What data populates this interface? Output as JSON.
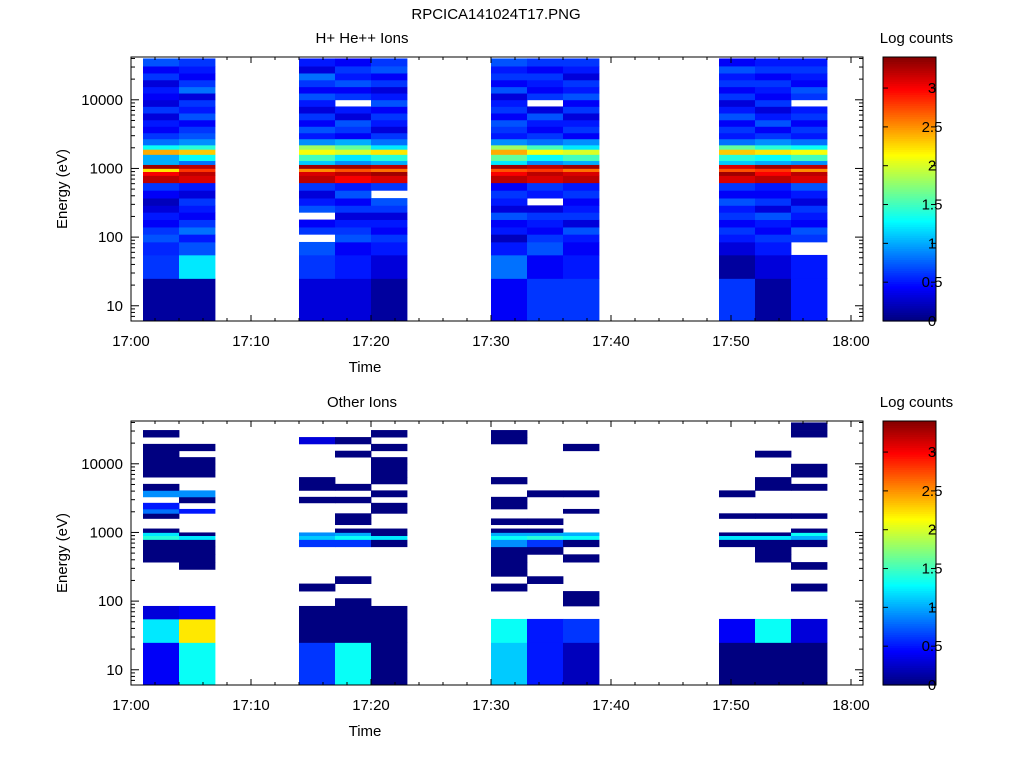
{
  "page_title": "RPCICA141024T17.PNG",
  "colorbar_label": "Log counts",
  "colorbar_ticks": [
    "0",
    "0.5",
    "1",
    "1.5",
    "2",
    "2.5",
    "3"
  ],
  "chart_data": [
    {
      "type": "heatmap",
      "title": "H+ He++ Ions",
      "xlabel": "Time",
      "ylabel": "Energy (eV)",
      "x_ticks": [
        "17:00",
        "17:10",
        "17:20",
        "17:30",
        "17:40",
        "17:50",
        "18:00"
      ],
      "y_ticks": [
        "10",
        "100",
        "1000",
        "10000"
      ],
      "xlim": [
        "17:00",
        "18:01"
      ],
      "y_scale": "log",
      "ylim": [
        6,
        42000
      ],
      "colorbar_range": [
        0,
        3.4
      ],
      "colorbar_label": "Log counts",
      "time_bins": [
        [
          "17:01",
          "17:04"
        ],
        [
          "17:04",
          "17:07"
        ],
        [
          "17:14",
          "17:17"
        ],
        [
          "17:17",
          "17:20"
        ],
        [
          "17:20",
          "17:23"
        ],
        [
          "17:30",
          "17:33"
        ],
        [
          "17:33",
          "17:36"
        ],
        [
          "17:36",
          "17:39"
        ],
        [
          "17:49",
          "17:52"
        ],
        [
          "17:52",
          "17:55"
        ],
        [
          "17:55",
          "17:58"
        ]
      ],
      "energy_bins_eV": [
        [
          6,
          25
        ],
        [
          25,
          55
        ],
        [
          55,
          85
        ],
        [
          85,
          110
        ],
        [
          110,
          140
        ],
        [
          140,
          180
        ],
        [
          180,
          230
        ],
        [
          230,
          290
        ],
        [
          290,
          370
        ],
        [
          370,
          480
        ],
        [
          480,
          620
        ],
        [
          620,
          790
        ],
        [
          790,
          900
        ],
        [
          900,
          1000
        ],
        [
          1000,
          1140
        ],
        [
          1140,
          1300
        ],
        [
          1300,
          1600
        ],
        [
          1600,
          1900
        ],
        [
          1900,
          2200
        ],
        [
          2200,
          2700
        ],
        [
          2700,
          3300
        ],
        [
          3300,
          4100
        ],
        [
          4100,
          5100
        ],
        [
          5100,
          6400
        ],
        [
          6400,
          8000
        ],
        [
          8000,
          10000
        ],
        [
          10000,
          12500
        ],
        [
          12500,
          15500
        ],
        [
          15500,
          19500
        ],
        [
          19500,
          24500
        ],
        [
          24500,
          31000
        ],
        [
          31000,
          40000
        ]
      ],
      "values": [
        [
          0.1,
          0.6,
          0.55,
          0.7,
          0.6,
          0.4,
          0.5,
          0.3,
          0.2,
          0.4,
          0.6,
          3.2,
          3.0,
          2.2,
          3.3,
          1.0,
          1.0,
          2.4,
          1.3,
          0.8,
          0.6,
          0.4,
          0.5,
          0.3,
          0.6,
          0.3,
          0.4,
          0.5,
          0.3,
          0.6,
          0.4,
          0.7
        ],
        [
          0.1,
          1.2,
          0.7,
          0.5,
          0.8,
          0.6,
          0.4,
          0.5,
          0.6,
          0.3,
          0.5,
          3.1,
          3.2,
          2.8,
          3.2,
          0.8,
          1.3,
          2.3,
          1.4,
          0.9,
          0.7,
          0.6,
          0.4,
          0.7,
          0.5,
          0.6,
          0.3,
          0.8,
          0.6,
          0.4,
          0.5,
          0.6
        ],
        [
          0.3,
          0.6,
          0.7,
          null,
          0.6,
          0.4,
          null,
          0.7,
          0.5,
          0.3,
          0.6,
          3.2,
          3.1,
          2.5,
          3.3,
          1.1,
          1.5,
          2.1,
          1.8,
          0.9,
          0.5,
          0.7,
          0.4,
          0.6,
          0.3,
          0.5,
          0.7,
          0.4,
          0.6,
          0.8,
          0.3,
          0.5
        ],
        [
          0.3,
          0.5,
          0.4,
          0.7,
          0.6,
          0.5,
          0.3,
          0.6,
          0.4,
          0.7,
          0.5,
          3.0,
          3.2,
          2.7,
          3.3,
          0.9,
          1.2,
          2.0,
          1.6,
          1.0,
          0.4,
          0.6,
          0.7,
          0.3,
          0.5,
          null,
          0.6,
          0.4,
          0.7,
          0.5,
          0.6,
          0.4
        ],
        [
          0.1,
          0.3,
          0.5,
          0.6,
          0.4,
          0.5,
          0.3,
          0.6,
          0.7,
          null,
          0.6,
          3.1,
          3.3,
          2.6,
          3.2,
          1.0,
          1.4,
          2.2,
          1.2,
          0.8,
          0.6,
          0.3,
          0.5,
          0.6,
          0.4,
          0.7,
          0.5,
          0.3,
          0.6,
          0.4,
          0.7,
          0.6
        ],
        [
          0.4,
          0.8,
          0.5,
          0.2,
          0.5,
          0.4,
          0.7,
          0.3,
          0.5,
          0.6,
          0.4,
          3.2,
          3.0,
          2.7,
          3.3,
          1.2,
          1.6,
          2.4,
          1.8,
          0.9,
          0.5,
          0.6,
          0.7,
          0.4,
          0.6,
          0.5,
          0.3,
          0.7,
          0.4,
          0.6,
          0.5,
          0.7
        ],
        [
          0.6,
          0.4,
          0.7,
          0.6,
          0.4,
          0.5,
          0.6,
          0.3,
          null,
          0.5,
          0.6,
          3.1,
          3.2,
          2.8,
          3.2,
          0.9,
          1.3,
          2.1,
          1.5,
          0.8,
          0.6,
          0.4,
          0.5,
          0.7,
          0.3,
          null,
          0.6,
          0.4,
          0.5,
          0.6,
          0.4,
          0.6
        ],
        [
          0.6,
          0.5,
          0.4,
          0.5,
          0.7,
          0.3,
          0.6,
          0.5,
          0.4,
          0.6,
          0.5,
          3.2,
          3.1,
          2.6,
          3.3,
          1.0,
          1.5,
          2.0,
          1.2,
          0.9,
          0.4,
          0.6,
          0.5,
          0.3,
          0.6,
          0.4,
          0.7,
          0.5,
          0.6,
          0.3,
          0.5,
          0.6
        ],
        [
          0.6,
          0.1,
          0.3,
          0.5,
          0.6,
          0.4,
          0.6,
          0.5,
          0.7,
          0.4,
          0.6,
          3.1,
          3.3,
          2.7,
          3.1,
          1.1,
          1.4,
          2.3,
          1.6,
          0.8,
          0.5,
          0.6,
          0.4,
          0.7,
          0.5,
          0.3,
          0.6,
          0.4,
          0.6,
          0.5,
          0.7,
          0.4
        ],
        [
          0.1,
          0.3,
          0.5,
          0.6,
          0.4,
          0.5,
          0.7,
          0.3,
          0.6,
          0.4,
          0.5,
          3.2,
          3.0,
          2.8,
          3.3,
          1.0,
          1.3,
          2.2,
          1.4,
          0.9,
          0.6,
          0.4,
          0.7,
          0.5,
          0.3,
          0.6,
          0.4,
          0.5,
          0.6,
          0.4,
          0.6,
          0.5
        ],
        [
          0.5,
          0.5,
          null,
          0.6,
          0.7,
          0.4,
          0.5,
          0.6,
          0.3,
          0.5,
          0.7,
          3.1,
          3.2,
          2.5,
          3.2,
          0.9,
          1.5,
          2.1,
          1.3,
          0.8,
          0.5,
          0.6,
          0.4,
          0.6,
          0.5,
          null,
          0.6,
          0.7,
          0.4,
          0.5,
          0.6,
          0.5
        ]
      ]
    },
    {
      "type": "heatmap",
      "title": "Other Ions",
      "xlabel": "Time",
      "ylabel": "Energy (eV)",
      "x_ticks": [
        "17:00",
        "17:10",
        "17:20",
        "17:30",
        "17:40",
        "17:50",
        "18:00"
      ],
      "y_ticks": [
        "10",
        "100",
        "1000",
        "10000"
      ],
      "xlim": [
        "17:00",
        "18:01"
      ],
      "y_scale": "log",
      "ylim": [
        6,
        42000
      ],
      "colorbar_range": [
        0,
        3.4
      ],
      "colorbar_label": "Log counts",
      "time_bins": [
        [
          "17:01",
          "17:04"
        ],
        [
          "17:04",
          "17:07"
        ],
        [
          "17:14",
          "17:17"
        ],
        [
          "17:17",
          "17:20"
        ],
        [
          "17:20",
          "17:23"
        ],
        [
          "17:30",
          "17:33"
        ],
        [
          "17:33",
          "17:36"
        ],
        [
          "17:36",
          "17:39"
        ],
        [
          "17:49",
          "17:52"
        ],
        [
          "17:52",
          "17:55"
        ],
        [
          "17:55",
          "17:58"
        ]
      ],
      "energy_bins_eV": [
        [
          6,
          25
        ],
        [
          25,
          55
        ],
        [
          55,
          85
        ],
        [
          85,
          110
        ],
        [
          110,
          140
        ],
        [
          140,
          180
        ],
        [
          180,
          230
        ],
        [
          230,
          290
        ],
        [
          290,
          370
        ],
        [
          370,
          480
        ],
        [
          480,
          620
        ],
        [
          620,
          790
        ],
        [
          790,
          900
        ],
        [
          900,
          1000
        ],
        [
          1000,
          1140
        ],
        [
          1140,
          1300
        ],
        [
          1300,
          1600
        ],
        [
          1600,
          1900
        ],
        [
          1900,
          2200
        ],
        [
          2200,
          2700
        ],
        [
          2700,
          3300
        ],
        [
          3300,
          4100
        ],
        [
          4100,
          5100
        ],
        [
          5100,
          6400
        ],
        [
          6400,
          8000
        ],
        [
          8000,
          10000
        ],
        [
          10000,
          12500
        ],
        [
          12500,
          15500
        ],
        [
          15500,
          19500
        ],
        [
          19500,
          24500
        ],
        [
          24500,
          31000
        ],
        [
          31000,
          40000
        ]
      ],
      "values": [
        [
          0.4,
          1.2,
          0.3,
          null,
          null,
          null,
          null,
          null,
          null,
          0.0,
          0.0,
          0.0,
          1.4,
          1.2,
          0.0,
          null,
          null,
          0.0,
          0.8,
          0.5,
          null,
          0.9,
          0.0,
          null,
          0.0,
          0.0,
          0.0,
          0.0,
          0.0,
          null,
          0.0,
          null
        ],
        [
          1.3,
          2.2,
          0.4,
          null,
          null,
          null,
          null,
          null,
          0.0,
          0.0,
          0.0,
          0.0,
          1.2,
          0.0,
          null,
          null,
          null,
          null,
          0.5,
          null,
          0.0,
          0.9,
          null,
          null,
          0.0,
          0.0,
          0.0,
          null,
          0.0,
          null,
          null,
          null
        ],
        [
          0.6,
          0.0,
          0.0,
          null,
          null,
          0.0,
          null,
          null,
          null,
          null,
          null,
          0.6,
          1.1,
          0.9,
          null,
          null,
          null,
          null,
          null,
          null,
          0.0,
          null,
          0.0,
          0.0,
          null,
          null,
          null,
          null,
          null,
          0.3,
          null,
          null
        ],
        [
          1.3,
          0.0,
          0.0,
          0.0,
          null,
          null,
          0.0,
          null,
          null,
          null,
          null,
          0.6,
          1.3,
          1.0,
          0.0,
          null,
          0.0,
          0.0,
          null,
          null,
          0.0,
          null,
          0.0,
          null,
          null,
          null,
          null,
          0.0,
          null,
          0.0,
          null,
          null
        ],
        [
          0.0,
          0.0,
          0.0,
          null,
          null,
          null,
          null,
          null,
          null,
          null,
          null,
          0.0,
          1.2,
          0.0,
          0.0,
          null,
          null,
          null,
          0.0,
          0.0,
          null,
          0.0,
          null,
          0.0,
          0.0,
          0.0,
          0.0,
          null,
          0.0,
          null,
          0.0,
          null
        ],
        [
          1.1,
          1.3,
          null,
          null,
          null,
          0.0,
          null,
          0.0,
          0.0,
          0.0,
          0.0,
          0.9,
          1.3,
          1.0,
          0.0,
          null,
          0.0,
          null,
          null,
          0.0,
          0.0,
          null,
          null,
          0.0,
          null,
          null,
          null,
          null,
          null,
          0.0,
          0.0,
          null
        ],
        [
          0.5,
          0.5,
          null,
          null,
          null,
          null,
          0.0,
          null,
          null,
          null,
          0.0,
          0.6,
          1.4,
          1.0,
          0.0,
          null,
          0.0,
          null,
          null,
          null,
          null,
          0.0,
          null,
          null,
          null,
          null,
          null,
          null,
          null,
          null,
          null,
          null
        ],
        [
          0.2,
          0.6,
          null,
          0.0,
          0.0,
          null,
          null,
          null,
          null,
          0.0,
          null,
          0.0,
          1.3,
          1.0,
          null,
          null,
          null,
          null,
          0.0,
          null,
          null,
          0.0,
          null,
          null,
          null,
          null,
          null,
          null,
          0.0,
          null,
          null,
          null
        ],
        [
          0.0,
          0.4,
          null,
          null,
          null,
          null,
          null,
          null,
          null,
          null,
          null,
          0.0,
          1.2,
          0.0,
          null,
          null,
          null,
          0.0,
          null,
          null,
          null,
          0.0,
          null,
          null,
          null,
          null,
          null,
          null,
          null,
          null,
          null,
          null
        ],
        [
          0.0,
          1.3,
          null,
          null,
          null,
          null,
          null,
          null,
          null,
          0.0,
          0.0,
          0.0,
          1.2,
          0.0,
          null,
          null,
          null,
          0.0,
          null,
          null,
          null,
          null,
          0.0,
          0.0,
          null,
          null,
          null,
          0.0,
          null,
          null,
          null,
          null
        ],
        [
          0.0,
          0.3,
          null,
          null,
          null,
          0.0,
          null,
          null,
          0.0,
          null,
          null,
          0.0,
          1.0,
          1.3,
          0.0,
          null,
          null,
          0.0,
          null,
          null,
          null,
          null,
          0.0,
          null,
          0.0,
          0.0,
          null,
          null,
          null,
          null,
          0.0,
          0.0
        ]
      ]
    }
  ]
}
